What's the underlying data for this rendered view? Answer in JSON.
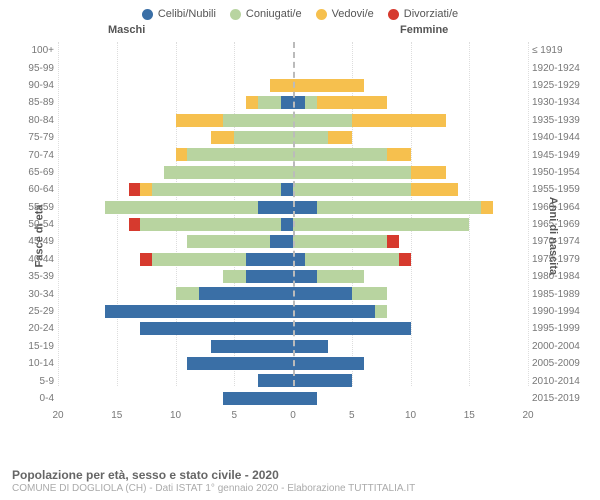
{
  "type": "population-pyramid",
  "legend": [
    {
      "label": "Celibi/Nubili",
      "color": "#3a6fa6"
    },
    {
      "label": "Coniugati/e",
      "color": "#b8d4a0"
    },
    {
      "label": "Vedovi/e",
      "color": "#f6c04e"
    },
    {
      "label": "Divorziati/e",
      "color": "#d63a2e"
    }
  ],
  "header_male": "Maschi",
  "header_female": "Femmine",
  "ylabel_left": "Fasce di età",
  "ylabel_right": "Anni di nascita",
  "colors": {
    "celibi": "#3a6fa6",
    "coniugati": "#b8d4a0",
    "vedovi": "#f6c04e",
    "divorziati": "#d63a2e",
    "grid": "#dddddd",
    "centerline": "#bbbbbb",
    "bg": "#ffffff"
  },
  "xlim": 20,
  "xticks": [
    20,
    15,
    10,
    5,
    0,
    5,
    10,
    15,
    20
  ],
  "rows": [
    {
      "age": "100+",
      "year": "≤ 1919",
      "m": {
        "cel": 0,
        "con": 0,
        "ved": 0,
        "div": 0
      },
      "f": {
        "cel": 0,
        "con": 0,
        "ved": 0,
        "div": 0
      }
    },
    {
      "age": "95-99",
      "year": "1920-1924",
      "m": {
        "cel": 0,
        "con": 0,
        "ved": 0,
        "div": 0
      },
      "f": {
        "cel": 0,
        "con": 0,
        "ved": 0,
        "div": 0
      }
    },
    {
      "age": "90-94",
      "year": "1925-1929",
      "m": {
        "cel": 0,
        "con": 0,
        "ved": 2,
        "div": 0
      },
      "f": {
        "cel": 0,
        "con": 0,
        "ved": 6,
        "div": 0
      }
    },
    {
      "age": "85-89",
      "year": "1930-1934",
      "m": {
        "cel": 1,
        "con": 2,
        "ved": 1,
        "div": 0
      },
      "f": {
        "cel": 1,
        "con": 1,
        "ved": 6,
        "div": 0
      }
    },
    {
      "age": "80-84",
      "year": "1935-1939",
      "m": {
        "cel": 0,
        "con": 6,
        "ved": 4,
        "div": 0
      },
      "f": {
        "cel": 0,
        "con": 5,
        "ved": 8,
        "div": 0
      }
    },
    {
      "age": "75-79",
      "year": "1940-1944",
      "m": {
        "cel": 0,
        "con": 5,
        "ved": 2,
        "div": 0
      },
      "f": {
        "cel": 0,
        "con": 3,
        "ved": 2,
        "div": 0
      }
    },
    {
      "age": "70-74",
      "year": "1945-1949",
      "m": {
        "cel": 0,
        "con": 9,
        "ved": 1,
        "div": 0
      },
      "f": {
        "cel": 0,
        "con": 8,
        "ved": 2,
        "div": 0
      }
    },
    {
      "age": "65-69",
      "year": "1950-1954",
      "m": {
        "cel": 0,
        "con": 11,
        "ved": 0,
        "div": 0
      },
      "f": {
        "cel": 0,
        "con": 10,
        "ved": 3,
        "div": 0
      }
    },
    {
      "age": "60-64",
      "year": "1955-1959",
      "m": {
        "cel": 1,
        "con": 11,
        "ved": 1,
        "div": 1
      },
      "f": {
        "cel": 0,
        "con": 10,
        "ved": 4,
        "div": 0
      }
    },
    {
      "age": "55-59",
      "year": "1960-1964",
      "m": {
        "cel": 3,
        "con": 13,
        "ved": 0,
        "div": 0
      },
      "f": {
        "cel": 2,
        "con": 14,
        "ved": 1,
        "div": 0
      }
    },
    {
      "age": "50-54",
      "year": "1965-1969",
      "m": {
        "cel": 1,
        "con": 12,
        "ved": 0,
        "div": 1
      },
      "f": {
        "cel": 0,
        "con": 15,
        "ved": 0,
        "div": 0
      }
    },
    {
      "age": "45-49",
      "year": "1970-1974",
      "m": {
        "cel": 2,
        "con": 7,
        "ved": 0,
        "div": 0
      },
      "f": {
        "cel": 0,
        "con": 8,
        "ved": 0,
        "div": 1
      }
    },
    {
      "age": "40-44",
      "year": "1975-1979",
      "m": {
        "cel": 4,
        "con": 8,
        "ved": 0,
        "div": 1
      },
      "f": {
        "cel": 1,
        "con": 8,
        "ved": 0,
        "div": 1
      }
    },
    {
      "age": "35-39",
      "year": "1980-1984",
      "m": {
        "cel": 4,
        "con": 2,
        "ved": 0,
        "div": 0
      },
      "f": {
        "cel": 2,
        "con": 4,
        "ved": 0,
        "div": 0
      }
    },
    {
      "age": "30-34",
      "year": "1985-1989",
      "m": {
        "cel": 8,
        "con": 2,
        "ved": 0,
        "div": 0
      },
      "f": {
        "cel": 5,
        "con": 3,
        "ved": 0,
        "div": 0
      }
    },
    {
      "age": "25-29",
      "year": "1990-1994",
      "m": {
        "cel": 16,
        "con": 0,
        "ved": 0,
        "div": 0
      },
      "f": {
        "cel": 7,
        "con": 1,
        "ved": 0,
        "div": 0
      }
    },
    {
      "age": "20-24",
      "year": "1995-1999",
      "m": {
        "cel": 13,
        "con": 0,
        "ved": 0,
        "div": 0
      },
      "f": {
        "cel": 10,
        "con": 0,
        "ved": 0,
        "div": 0
      }
    },
    {
      "age": "15-19",
      "year": "2000-2004",
      "m": {
        "cel": 7,
        "con": 0,
        "ved": 0,
        "div": 0
      },
      "f": {
        "cel": 3,
        "con": 0,
        "ved": 0,
        "div": 0
      }
    },
    {
      "age": "10-14",
      "year": "2005-2009",
      "m": {
        "cel": 9,
        "con": 0,
        "ved": 0,
        "div": 0
      },
      "f": {
        "cel": 6,
        "con": 0,
        "ved": 0,
        "div": 0
      }
    },
    {
      "age": "5-9",
      "year": "2010-2014",
      "m": {
        "cel": 3,
        "con": 0,
        "ved": 0,
        "div": 0
      },
      "f": {
        "cel": 5,
        "con": 0,
        "ved": 0,
        "div": 0
      }
    },
    {
      "age": "0-4",
      "year": "2015-2019",
      "m": {
        "cel": 6,
        "con": 0,
        "ved": 0,
        "div": 0
      },
      "f": {
        "cel": 2,
        "con": 0,
        "ved": 0,
        "div": 0
      }
    }
  ],
  "footer_title": "Popolazione per età, sesso e stato civile - 2020",
  "footer_sub": "COMUNE DI DOGLIOLA (CH) - Dati ISTAT 1° gennaio 2020 - Elaborazione TUTTITALIA.IT"
}
